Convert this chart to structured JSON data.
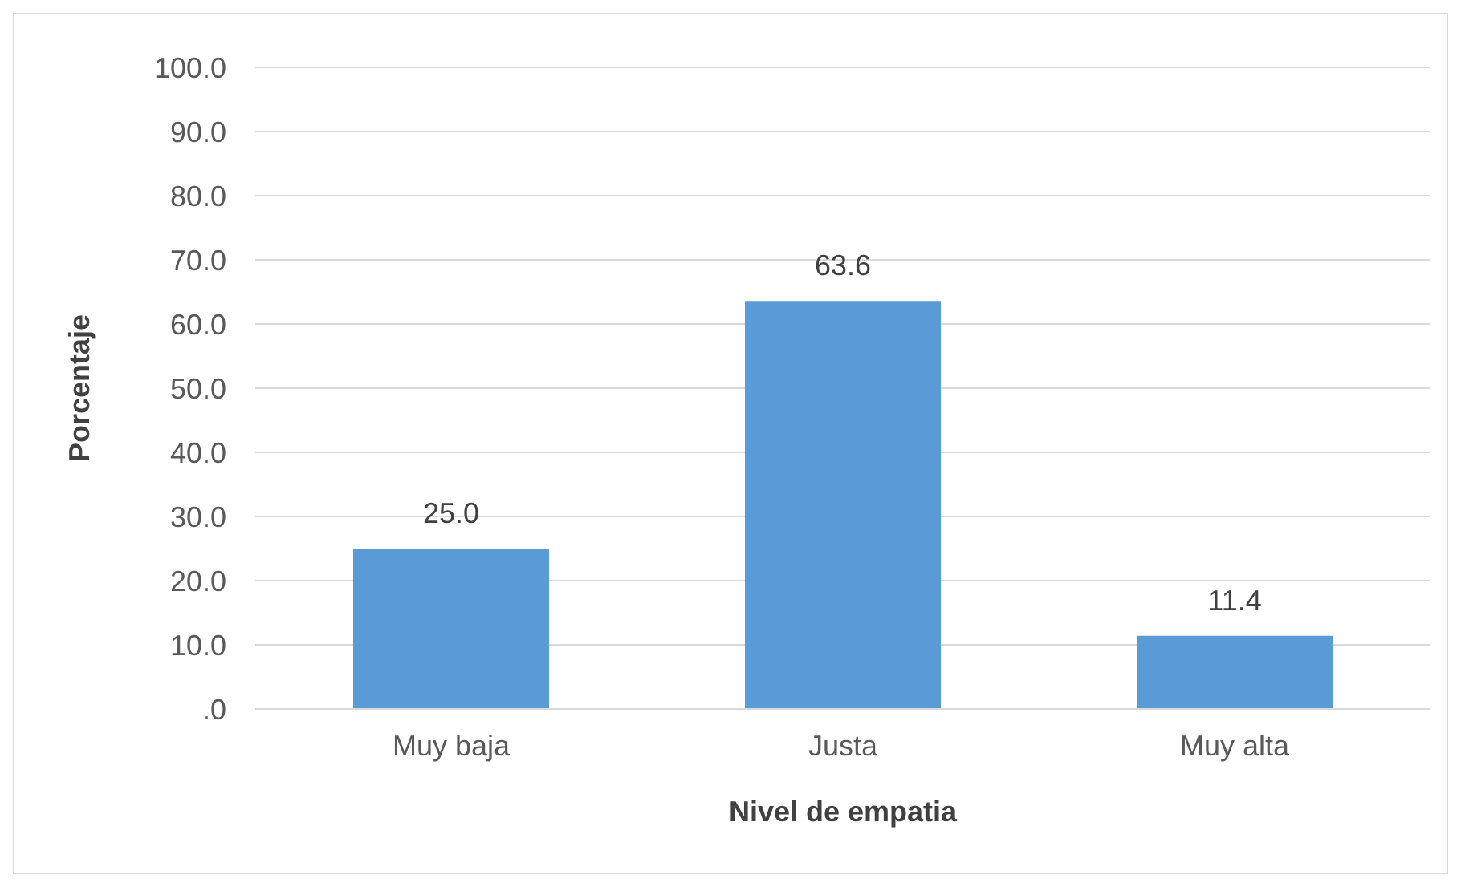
{
  "chart_data": {
    "type": "bar",
    "xlabel": "Nivel de empatia",
    "ylabel": "Porcentaje",
    "categories": [
      "Muy baja",
      "Justa",
      "Muy alta"
    ],
    "values": [
      25.0,
      63.6,
      11.4
    ],
    "value_labels": [
      "25.0",
      "63.6",
      "11.4"
    ],
    "color": "#5b9bd5",
    "ylim": [
      0,
      100
    ],
    "yticks": [
      {
        "value": 0,
        "label": ".0"
      },
      {
        "value": 10,
        "label": "10.0"
      },
      {
        "value": 20,
        "label": "20.0"
      },
      {
        "value": 30,
        "label": "30.0"
      },
      {
        "value": 40,
        "label": "40.0"
      },
      {
        "value": 50,
        "label": "50.0"
      },
      {
        "value": 60,
        "label": "60.0"
      },
      {
        "value": 70,
        "label": "70.0"
      },
      {
        "value": 80,
        "label": "80.0"
      },
      {
        "value": 90,
        "label": "90.0"
      },
      {
        "value": 100,
        "label": "100.0"
      }
    ],
    "grid": "y",
    "legend": false
  }
}
